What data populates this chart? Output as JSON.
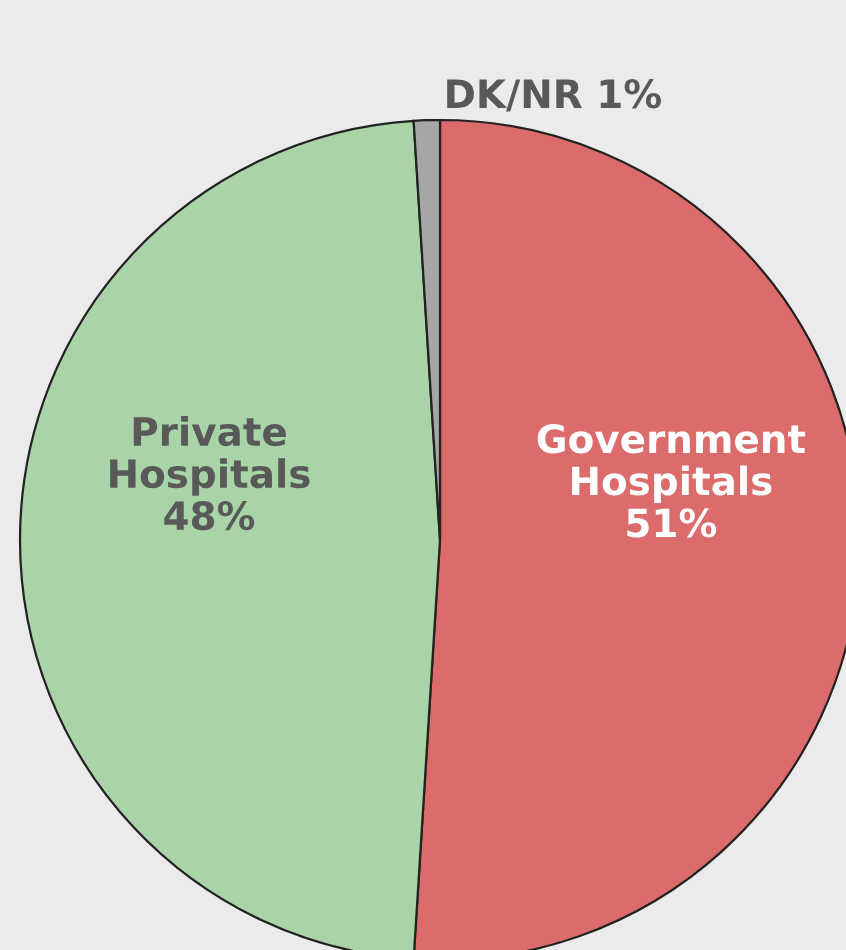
{
  "chart_data": {
    "type": "pie",
    "categories": [
      "Government Hospitals",
      "Private Hospitals",
      "DK/NR"
    ],
    "values": [
      51,
      48,
      1
    ],
    "colors": [
      "#dc6b6c",
      "#a9d4a8",
      "#a6a6a6"
    ],
    "value_labels": [
      "51%",
      "48%",
      "1%"
    ],
    "legend": false
  }
}
